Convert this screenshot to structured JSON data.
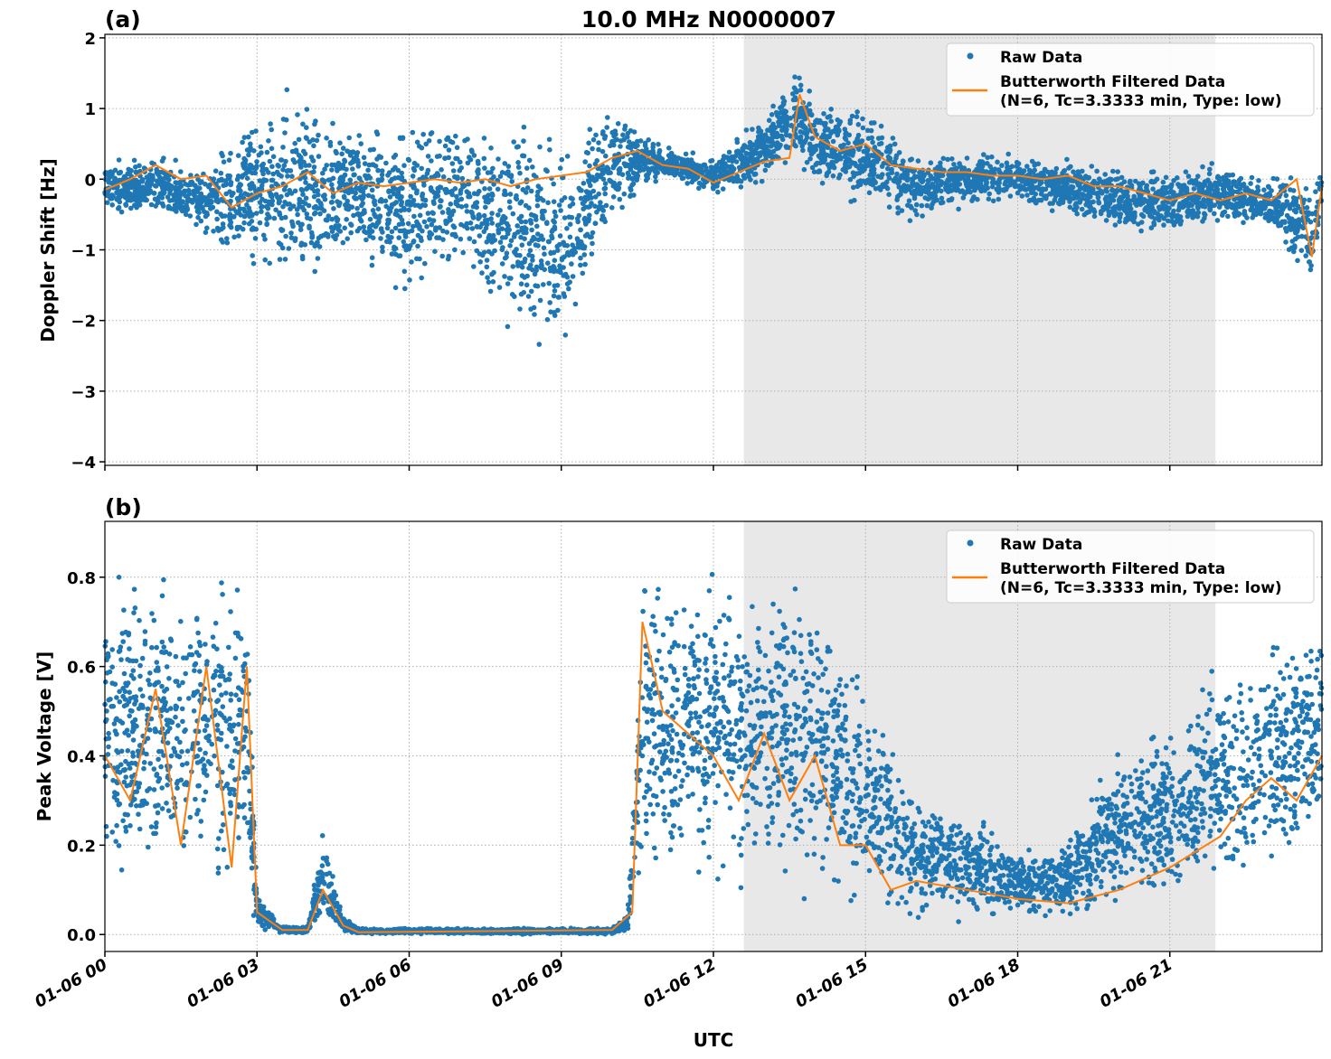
{
  "title": "10.0 MHz N0000007",
  "xlabel": "UTC",
  "x_tick_labels": [
    "01-06 00",
    "01-06 03",
    "01-06 06",
    "01-06 09",
    "01-06 12",
    "01-06 15",
    "01-06 18",
    "01-06 21"
  ],
  "colors": {
    "raw": "#1f77b4",
    "filtered": "#ff7f0e",
    "shade": "#e8e8e8"
  },
  "chart_data": [
    {
      "type": "scatter",
      "panel_label": "(a)",
      "ylabel": "Doppler Shift [Hz]",
      "x_unit": "hours UTC on 01-06",
      "xlim": [
        0,
        24
      ],
      "ylim": [
        -4.05,
        2.05
      ],
      "y_ticks": [
        2,
        1,
        0,
        -1,
        -2,
        -3,
        -4
      ],
      "y_tick_labels": [
        "2",
        "1",
        "0",
        "−1",
        "−2",
        "−3",
        "−4"
      ],
      "grid": true,
      "legend_placement": "top-right",
      "shaded_interval_hours": [
        12.6,
        21.9
      ],
      "series": [
        {
          "name": "Raw Data",
          "kind": "scatter-envelope",
          "x": [
            0,
            1,
            2,
            3,
            4,
            5,
            6,
            7,
            8,
            9,
            10,
            11,
            12,
            13,
            13.7,
            14,
            15,
            16,
            17,
            18,
            19,
            20,
            21,
            22,
            23,
            23.8,
            24
          ],
          "low": [
            -0.5,
            -0.6,
            -0.9,
            -1.5,
            -1.8,
            -1.3,
            -2.0,
            -1.3,
            -2.5,
            -2.8,
            -0.7,
            0,
            -0.25,
            -0.1,
            0.2,
            -0.2,
            -0.5,
            -0.7,
            -0.4,
            -0.4,
            -0.6,
            -0.8,
            -0.8,
            -0.7,
            -0.8,
            -1.7,
            -0.5
          ],
          "high": [
            0.3,
            0.4,
            0.2,
            1.2,
            1.4,
            1.0,
            1.0,
            1.0,
            1.0,
            0.9,
            1.2,
            0.5,
            0.3,
            1.0,
            1.7,
            1.2,
            1.1,
            0.5,
            0.4,
            0.4,
            0.4,
            0.2,
            0.2,
            0.3,
            0.1,
            0.2,
            0.2
          ]
        },
        {
          "name": "Butterworth Filtered Data",
          "name_line2": "(N=6, Tc=3.3333 min, Type: low)",
          "kind": "line",
          "x": [
            0,
            0.5,
            1,
            1.5,
            2,
            2.5,
            3,
            3.5,
            4,
            4.5,
            5,
            5.5,
            6,
            6.5,
            7,
            7.5,
            8,
            8.5,
            9,
            9.5,
            10,
            10.5,
            11,
            11.5,
            12,
            12.5,
            13,
            13.5,
            13.7,
            14,
            14.5,
            15,
            15.5,
            16,
            16.5,
            17,
            17.5,
            18,
            18.5,
            19,
            19.5,
            20,
            20.5,
            21,
            21.5,
            22,
            22.5,
            23,
            23.5,
            23.8,
            24
          ],
          "y": [
            -0.15,
            0.0,
            0.2,
            0.0,
            0.05,
            -0.4,
            -0.2,
            -0.1,
            0.1,
            -0.2,
            -0.05,
            -0.1,
            -0.05,
            0.0,
            -0.05,
            0.0,
            -0.1,
            0.0,
            0.05,
            0.1,
            0.3,
            0.4,
            0.2,
            0.15,
            -0.05,
            0.1,
            0.25,
            0.3,
            1.2,
            0.6,
            0.4,
            0.5,
            0.2,
            0.15,
            0.1,
            0.1,
            0.05,
            0.05,
            0.0,
            0.05,
            -0.1,
            -0.1,
            -0.2,
            -0.3,
            -0.2,
            -0.3,
            -0.2,
            -0.3,
            0.0,
            -1.1,
            -0.1
          ]
        }
      ]
    },
    {
      "type": "scatter",
      "panel_label": "(b)",
      "ylabel": "Peak Voltage [V]",
      "x_unit": "hours UTC on 01-06",
      "xlim": [
        0,
        24
      ],
      "ylim": [
        -0.038,
        0.925
      ],
      "y_ticks": [
        0.0,
        0.2,
        0.4,
        0.6,
        0.8
      ],
      "y_tick_labels": [
        "0.0",
        "0.2",
        "0.4",
        "0.6",
        "0.8"
      ],
      "grid": true,
      "legend_placement": "top-right",
      "shaded_interval_hours": [
        12.6,
        21.9
      ],
      "series": [
        {
          "name": "Raw Data",
          "kind": "scatter-envelope",
          "x": [
            0,
            1,
            2,
            2.8,
            3,
            3.5,
            4,
            4.3,
            4.7,
            5,
            10,
            10.3,
            10.6,
            11,
            12,
            13,
            14,
            15,
            16,
            17,
            18,
            19,
            20,
            21,
            22,
            23,
            24
          ],
          "low": [
            0.1,
            0.05,
            0.05,
            0.02,
            0,
            0,
            0,
            0,
            0,
            0,
            0,
            0,
            0.1,
            0.1,
            0.05,
            0.05,
            0.05,
            0.03,
            0.02,
            0.02,
            0.02,
            0.02,
            0.02,
            0.05,
            0.05,
            0.1,
            0.15
          ],
          "high": [
            0.85,
            0.85,
            0.85,
            0.87,
            0.1,
            0.02,
            0.02,
            0.25,
            0.05,
            0.015,
            0.015,
            0.05,
            0.87,
            0.85,
            0.87,
            0.83,
            0.85,
            0.6,
            0.35,
            0.3,
            0.2,
            0.25,
            0.45,
            0.5,
            0.65,
            0.7,
            0.75
          ]
        },
        {
          "name": "Butterworth Filtered Data",
          "name_line2": "(N=6, Tc=3.3333 min, Type: low)",
          "kind": "line",
          "x": [
            0,
            0.5,
            1,
            1.5,
            2,
            2.5,
            2.8,
            3,
            3.5,
            4,
            4.3,
            4.7,
            5,
            10,
            10.4,
            10.6,
            11,
            11.5,
            12,
            12.5,
            13,
            13.5,
            14,
            14.5,
            15,
            15.5,
            16,
            17,
            18,
            19,
            20,
            21,
            22,
            22.5,
            23,
            23.5,
            24
          ],
          "y": [
            0.4,
            0.3,
            0.55,
            0.2,
            0.6,
            0.15,
            0.6,
            0.05,
            0.01,
            0.01,
            0.1,
            0.02,
            0.005,
            0.01,
            0.05,
            0.7,
            0.5,
            0.45,
            0.4,
            0.3,
            0.45,
            0.3,
            0.4,
            0.2,
            0.2,
            0.1,
            0.12,
            0.1,
            0.08,
            0.07,
            0.1,
            0.15,
            0.22,
            0.3,
            0.35,
            0.3,
            0.4
          ]
        }
      ]
    }
  ]
}
